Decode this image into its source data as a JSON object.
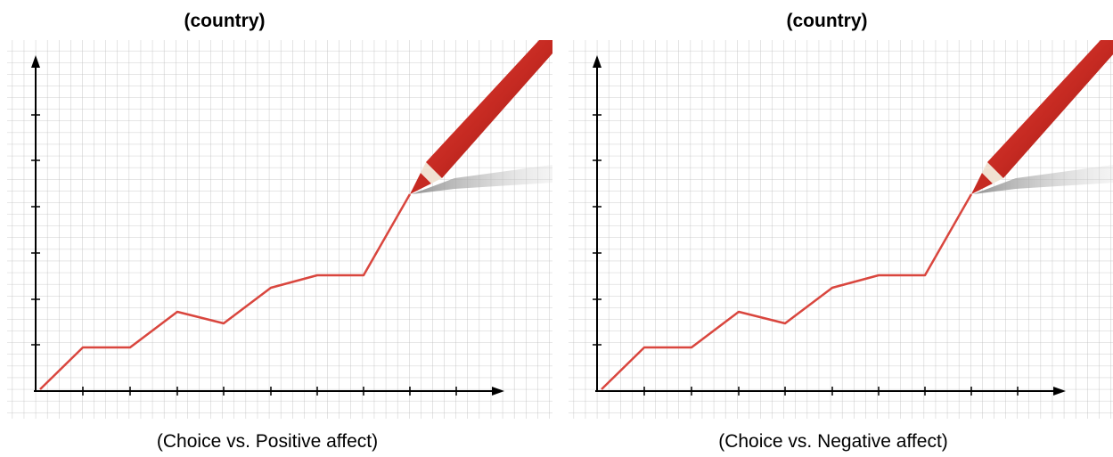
{
  "panels": [
    {
      "title": "(country)",
      "caption": "(Choice vs. Positive affect)"
    },
    {
      "title": "(country)",
      "caption": "(Choice vs. Negative affect)"
    }
  ]
}
